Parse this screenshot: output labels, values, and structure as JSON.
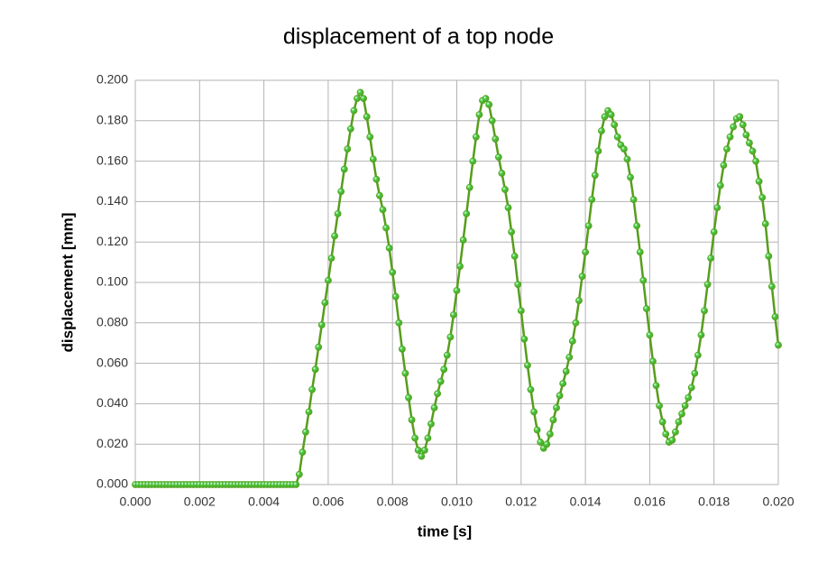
{
  "chart_data": {
    "type": "line",
    "title": "displacement of a top node",
    "xlabel": "time [s]",
    "ylabel": "displacement [mm]",
    "x": [
      0,
      0.0001,
      0.0002,
      0.0003,
      0.0004,
      0.0005,
      0.0006,
      0.0007,
      0.0008,
      0.0009,
      0.001,
      0.0011,
      0.0012,
      0.0013,
      0.0014,
      0.0015,
      0.0016,
      0.0017,
      0.0018,
      0.0019,
      0.002,
      0.0021,
      0.0022,
      0.0023,
      0.0024,
      0.0025,
      0.0026,
      0.0027,
      0.0028,
      0.0029,
      0.003,
      0.0031,
      0.0032,
      0.0033,
      0.0034,
      0.0035,
      0.0036,
      0.0037,
      0.0038,
      0.0039,
      0.004,
      0.0041,
      0.0042,
      0.0043,
      0.0044,
      0.0045,
      0.0046,
      0.0047,
      0.0048,
      0.0049,
      0.005,
      0.0051,
      0.0052,
      0.0053,
      0.0054,
      0.0055,
      0.0056,
      0.0057,
      0.0058,
      0.0059,
      0.006,
      0.0061,
      0.0062,
      0.0063,
      0.0064,
      0.0065,
      0.0066,
      0.0067,
      0.0068,
      0.0069,
      0.007,
      0.0071,
      0.0072,
      0.0073,
      0.0074,
      0.0075,
      0.0076,
      0.0077,
      0.0078,
      0.0079,
      0.008,
      0.0081,
      0.0082,
      0.0083,
      0.0084,
      0.0085,
      0.0086,
      0.0087,
      0.0088,
      0.0089,
      0.009,
      0.0091,
      0.0092,
      0.0093,
      0.0094,
      0.0095,
      0.0096,
      0.0097,
      0.0098,
      0.0099,
      0.01,
      0.0101,
      0.0102,
      0.0103,
      0.0104,
      0.0105,
      0.0106,
      0.0107,
      0.0108,
      0.0109,
      0.011,
      0.0111,
      0.0112,
      0.0113,
      0.0114,
      0.0115,
      0.0116,
      0.0117,
      0.0118,
      0.0119,
      0.012,
      0.0121,
      0.0122,
      0.0123,
      0.0124,
      0.0125,
      0.0126,
      0.0127,
      0.0128,
      0.0129,
      0.013,
      0.0131,
      0.0132,
      0.0133,
      0.0134,
      0.0135,
      0.0136,
      0.0137,
      0.0138,
      0.0139,
      0.014,
      0.0141,
      0.0142,
      0.0143,
      0.0144,
      0.0145,
      0.0146,
      0.0147,
      0.0148,
      0.0149,
      0.015,
      0.0151,
      0.0152,
      0.0153,
      0.0154,
      0.0155,
      0.0156,
      0.0157,
      0.0158,
      0.0159,
      0.016,
      0.0161,
      0.0162,
      0.0163,
      0.0164,
      0.0165,
      0.0166,
      0.0167,
      0.0168,
      0.0169,
      0.017,
      0.0171,
      0.0172,
      0.0173,
      0.0174,
      0.0175,
      0.0176,
      0.0177,
      0.0178,
      0.0179,
      0.018,
      0.0181,
      0.0182,
      0.0183,
      0.0184,
      0.0185,
      0.0186,
      0.0187,
      0.0188,
      0.0189,
      0.019,
      0.0191,
      0.0192,
      0.0193,
      0.0194,
      0.0195,
      0.0196,
      0.0197,
      0.0198,
      0.0199,
      0.02
    ],
    "series": [
      {
        "color": "#579d1c",
        "marker_color": "#44cc44",
        "values": [
          0,
          0,
          0,
          0,
          0,
          0,
          0,
          0,
          0,
          0,
          0,
          0,
          0,
          0,
          0,
          0,
          0,
          0,
          0,
          0,
          0,
          0,
          0,
          0,
          0,
          0,
          0,
          0,
          0,
          0,
          0,
          0,
          0,
          0,
          0,
          0,
          0,
          0,
          0,
          0,
          0,
          0,
          0,
          0,
          0,
          0,
          0,
          0,
          0,
          0,
          0,
          0.005,
          0.016,
          0.026,
          0.036,
          0.047,
          0.057,
          0.068,
          0.079,
          0.09,
          0.101,
          0.112,
          0.123,
          0.134,
          0.145,
          0.156,
          0.166,
          0.176,
          0.185,
          0.191,
          0.194,
          0.191,
          0.182,
          0.172,
          0.161,
          0.151,
          0.143,
          0.136,
          0.127,
          0.117,
          0.105,
          0.093,
          0.08,
          0.067,
          0.055,
          0.043,
          0.032,
          0.023,
          0.017,
          0.014,
          0.017,
          0.023,
          0.03,
          0.038,
          0.045,
          0.051,
          0.057,
          0.064,
          0.073,
          0.084,
          0.096,
          0.108,
          0.121,
          0.134,
          0.147,
          0.16,
          0.172,
          0.183,
          0.19,
          0.191,
          0.188,
          0.18,
          0.171,
          0.162,
          0.154,
          0.146,
          0.137,
          0.125,
          0.113,
          0.099,
          0.086,
          0.072,
          0.059,
          0.047,
          0.036,
          0.027,
          0.021,
          0.018,
          0.02,
          0.025,
          0.032,
          0.038,
          0.044,
          0.05,
          0.056,
          0.063,
          0.071,
          0.08,
          0.091,
          0.103,
          0.115,
          0.128,
          0.141,
          0.153,
          0.165,
          0.175,
          0.182,
          0.185,
          0.183,
          0.178,
          0.172,
          0.168,
          0.166,
          0.161,
          0.152,
          0.141,
          0.128,
          0.115,
          0.101,
          0.087,
          0.074,
          0.061,
          0.049,
          0.039,
          0.031,
          0.025,
          0.021,
          0.022,
          0.026,
          0.031,
          0.035,
          0.039,
          0.043,
          0.048,
          0.055,
          0.064,
          0.074,
          0.086,
          0.099,
          0.112,
          0.125,
          0.137,
          0.148,
          0.158,
          0.166,
          0.172,
          0.177,
          0.181,
          0.182,
          0.178,
          0.173,
          0.169,
          0.165,
          0.16,
          0.15,
          0.142,
          0.129,
          0.113,
          0.098,
          0.083,
          0.069
        ]
      }
    ],
    "xlim": [
      0,
      0.02
    ],
    "xticks": [
      {
        "value": 0,
        "label": "0.000"
      },
      {
        "value": 0.002,
        "label": "0.002"
      },
      {
        "value": 0.004,
        "label": "0.004"
      },
      {
        "value": 0.006,
        "label": "0.006"
      },
      {
        "value": 0.008,
        "label": "0.008"
      },
      {
        "value": 0.01,
        "label": "0.010"
      },
      {
        "value": 0.012,
        "label": "0.012"
      },
      {
        "value": 0.014,
        "label": "0.014"
      },
      {
        "value": 0.016,
        "label": "0.016"
      },
      {
        "value": 0.018,
        "label": "0.018"
      },
      {
        "value": 0.02,
        "label": "0.020"
      }
    ],
    "ylim": [
      0,
      0.2
    ],
    "yticks": [
      {
        "value": 0,
        "label": "0.000"
      },
      {
        "value": 0.02,
        "label": "0.020"
      },
      {
        "value": 0.04,
        "label": "0.040"
      },
      {
        "value": 0.06,
        "label": "0.060"
      },
      {
        "value": 0.08,
        "label": "0.080"
      },
      {
        "value": 0.1,
        "label": "0.100"
      },
      {
        "value": 0.12,
        "label": "0.120"
      },
      {
        "value": 0.14,
        "label": "0.140"
      },
      {
        "value": 0.16,
        "label": "0.160"
      },
      {
        "value": 0.18,
        "label": "0.180"
      },
      {
        "value": 0.2,
        "label": "0.200"
      }
    ],
    "grid": true
  }
}
